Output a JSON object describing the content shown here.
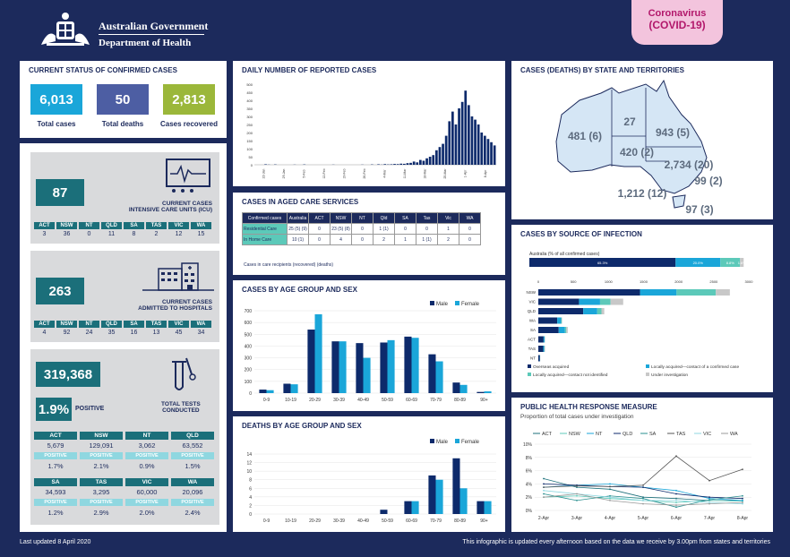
{
  "header": {
    "gov_line1": "Australian Government",
    "gov_line2": "Department of Health",
    "badge_line1": "Coronavirus",
    "badge_line2": "(COVID-19)"
  },
  "status": {
    "title": "CURRENT STATUS OF CONFIRMED CASES",
    "total_cases": "6,013",
    "total_cases_label": "Total cases",
    "total_deaths": "50",
    "total_deaths_label": "Total deaths",
    "recovered": "2,813",
    "recovered_label": "Cases recovered"
  },
  "icu": {
    "value": "87",
    "label1": "CURRENT CASES",
    "label2": "INTENSIVE CARE UNITS (ICU)",
    "states": [
      "ACT",
      "NSW",
      "NT",
      "QLD",
      "SA",
      "TAS",
      "VIC",
      "WA"
    ],
    "values": [
      "3",
      "36",
      "0",
      "11",
      "8",
      "2",
      "12",
      "15"
    ]
  },
  "hospital": {
    "value": "263",
    "label1": "CURRENT CASES",
    "label2": "ADMITTED TO HOSPITALS",
    "states": [
      "ACT",
      "NSW",
      "NT",
      "QLD",
      "SA",
      "TAS",
      "VIC",
      "WA"
    ],
    "values": [
      "4",
      "92",
      "24",
      "35",
      "16",
      "13",
      "45",
      "34"
    ]
  },
  "tests": {
    "value": "319,368",
    "positive_pct": "1.9%",
    "positive_label": "POSITIVE",
    "label1": "TOTAL TESTS",
    "label2": "CONDUCTED",
    "positive_word": "POSITIVE",
    "states": [
      {
        "name": "ACT",
        "tests": "5,679",
        "pct": "1.7%"
      },
      {
        "name": "NSW",
        "tests": "129,091",
        "pct": "2.1%"
      },
      {
        "name": "NT",
        "tests": "3,062",
        "pct": "0.9%"
      },
      {
        "name": "QLD",
        "tests": "63,552",
        "pct": "1.5%"
      },
      {
        "name": "SA",
        "tests": "34,593",
        "pct": "1.2%"
      },
      {
        "name": "TAS",
        "tests": "3,295",
        "pct": "2.9%"
      },
      {
        "name": "VIC",
        "tests": "60,000",
        "pct": "2.0%"
      },
      {
        "name": "WA",
        "tests": "20,096",
        "pct": "2.4%"
      }
    ]
  },
  "aged": {
    "title": "CASES IN AGED CARE SERVICES",
    "headers": [
      "Confirmed cases",
      "Australia",
      "ACT",
      "NSW",
      "NT",
      "Qld",
      "SA",
      "Tas",
      "Vic",
      "WA"
    ],
    "rows": [
      {
        "label": "Residential Care",
        "cells": [
          "25 (5) (9)",
          "0",
          "23 (5) (8)",
          "0",
          "1 (1)",
          "0",
          "0",
          "1",
          "0"
        ]
      },
      {
        "label": "In Home Care",
        "cells": [
          "10 (1)",
          "0",
          "4",
          "0",
          "2",
          "1",
          "1 (1)",
          "2",
          "0"
        ]
      }
    ],
    "note": "Cases in care recipients (recovered) (deaths)"
  },
  "map": {
    "title": "CASES (DEATHS) BY STATE AND TERRITORIES",
    "labels": [
      {
        "text": "481 (6)",
        "state": "WA"
      },
      {
        "text": "27",
        "state": "NT"
      },
      {
        "text": "943 (5)",
        "state": "QLD"
      },
      {
        "text": "420 (2)",
        "state": "SA"
      },
      {
        "text": "2,734 (20)",
        "state": "NSW"
      },
      {
        "text": "99 (2)",
        "state": "ACT"
      },
      {
        "text": "1,212 (12)",
        "state": "VIC"
      },
      {
        "text": "97 (3)",
        "state": "TAS"
      }
    ]
  },
  "chart_data": [
    {
      "id": "daily",
      "type": "bar",
      "title": "DAILY NUMBER OF REPORTED CASES",
      "ylim": [
        0,
        500
      ],
      "yticks": [
        "0",
        "50",
        "100",
        "150",
        "200",
        "250",
        "300",
        "350",
        "400",
        "450",
        "500"
      ],
      "xticklabels": [
        "22-Jan",
        "29-Jan",
        "5-Feb",
        "12-Feb",
        "19-Feb",
        "26-Feb",
        "4-Mar",
        "11-Mar",
        "18-Mar",
        "25-Mar",
        "1-Apr",
        "8-Apr"
      ],
      "values": [
        0,
        0,
        0,
        3,
        1,
        0,
        2,
        0,
        0,
        0,
        0,
        0,
        1,
        0,
        0,
        2,
        0,
        0,
        0,
        0,
        0,
        0,
        0,
        0,
        1,
        0,
        0,
        0,
        0,
        0,
        0,
        0,
        0,
        1,
        0,
        0,
        2,
        0,
        3,
        1,
        4,
        2,
        3,
        5,
        4,
        7,
        6,
        10,
        12,
        20,
        15,
        30,
        25,
        40,
        50,
        60,
        90,
        110,
        130,
        180,
        270,
        330,
        250,
        350,
        390,
        460,
        370,
        300,
        280,
        250,
        200,
        180,
        160,
        140,
        120
      ],
      "note": "values estimated from bar heights"
    },
    {
      "id": "age",
      "type": "bar",
      "title": "CASES BY AGE GROUP AND SEX",
      "ylim": [
        0,
        700
      ],
      "yticks": [
        "0",
        "100",
        "200",
        "300",
        "400",
        "500",
        "600",
        "700"
      ],
      "categories": [
        "0-9",
        "10-19",
        "20-29",
        "30-39",
        "40-49",
        "50-59",
        "60-69",
        "70-79",
        "80-89",
        "90+"
      ],
      "series": [
        {
          "name": "Male",
          "color": "#0d2a6b",
          "values": [
            30,
            80,
            540,
            440,
            425,
            430,
            480,
            330,
            90,
            10
          ]
        },
        {
          "name": "Female",
          "color": "#1aa6d9",
          "values": [
            25,
            75,
            670,
            440,
            300,
            450,
            470,
            270,
            70,
            15
          ]
        }
      ]
    },
    {
      "id": "deaths",
      "type": "bar",
      "title": "DEATHS BY AGE GROUP AND SEX",
      "ylim": [
        0,
        14
      ],
      "yticks": [
        "0",
        "2",
        "4",
        "6",
        "8",
        "10",
        "12",
        "14"
      ],
      "categories": [
        "0-9",
        "10-19",
        "20-29",
        "30-39",
        "40-49",
        "50-59",
        "60-69",
        "70-79",
        "80-89",
        "90+"
      ],
      "series": [
        {
          "name": "Male",
          "color": "#0d2a6b",
          "values": [
            0,
            0,
            0,
            0,
            0,
            1,
            3,
            9,
            13,
            3
          ]
        },
        {
          "name": "Female",
          "color": "#1aa6d9",
          "values": [
            0,
            0,
            0,
            0,
            0,
            0,
            3,
            8,
            6,
            3
          ]
        }
      ]
    },
    {
      "id": "source",
      "type": "bar",
      "title": "CASES BY SOURCE OF INFECTION",
      "subtitle": "Australia (% of all confirmed cases)",
      "aus_pct": [
        "65.3%",
        "20.0%",
        "8.8%",
        "1.6%"
      ],
      "xticks": [
        "0",
        "500",
        "1000",
        "1500",
        "2000",
        "2500",
        "3000"
      ],
      "xlim": [
        0,
        3000
      ],
      "categories": [
        "NSW",
        "VIC",
        "QLD",
        "WA",
        "SA",
        "ACT",
        "TAS",
        "NT"
      ],
      "series": [
        {
          "name": "Overseas acquired",
          "color": "#0d2a6b",
          "values": [
            1450,
            580,
            640,
            270,
            290,
            75,
            70,
            22
          ]
        },
        {
          "name": "Locally acquired—contact of a confirmed case",
          "color": "#1aa6d9",
          "values": [
            520,
            300,
            200,
            55,
            90,
            14,
            15,
            3
          ]
        },
        {
          "name": "Locally acquired—contact not identified",
          "color": "#5cc9b9",
          "values": [
            560,
            150,
            60,
            10,
            20,
            3,
            3,
            1
          ]
        },
        {
          "name": "Under investigation",
          "color": "#c8c8c8",
          "values": [
            200,
            180,
            40,
            5,
            20,
            5,
            8,
            1
          ]
        }
      ]
    },
    {
      "id": "phrm",
      "type": "line",
      "title": "PUBLIC HEALTH RESPONSE MEASURE",
      "subtitle": "Proportion of total cases under investigation",
      "ylim": [
        0,
        10
      ],
      "yticks": [
        "0%",
        "2%",
        "4%",
        "6%",
        "8%",
        "10%"
      ],
      "x": [
        "2-Apr",
        "3-Apr",
        "4-Apr",
        "5-Apr",
        "6-Apr",
        "7-Apr",
        "8-Apr"
      ],
      "series": [
        {
          "name": "ACT",
          "color": "#1b6f7a",
          "values": [
            4.8,
            3.5,
            3.2,
            2.0,
            1.8,
            1.5,
            1.5
          ]
        },
        {
          "name": "NSW",
          "color": "#5cc9b9",
          "values": [
            2.0,
            2.2,
            1.8,
            1.5,
            1.2,
            1.5,
            1.4
          ]
        },
        {
          "name": "NT",
          "color": "#1aa6d9",
          "values": [
            3.5,
            3.8,
            4.0,
            3.5,
            3.0,
            1.8,
            1.5
          ]
        },
        {
          "name": "QLD",
          "color": "#0d2a6b",
          "values": [
            4.0,
            3.8,
            3.6,
            3.5,
            2.5,
            2.0,
            1.8
          ]
        },
        {
          "name": "SA",
          "color": "#2a8f8f",
          "values": [
            2.5,
            1.5,
            2.2,
            1.8,
            0.5,
            1.6,
            2.2
          ]
        },
        {
          "name": "TAS",
          "color": "#555555",
          "values": [
            3.5,
            3.7,
            3.6,
            3.8,
            8.2,
            4.5,
            6.2
          ]
        },
        {
          "name": "VIC",
          "color": "#8fd7e0",
          "values": [
            3.0,
            2.5,
            2.0,
            1.5,
            1.5,
            1.2,
            1.0
          ]
        },
        {
          "name": "WA",
          "color": "#999999",
          "values": [
            2.0,
            2.5,
            1.5,
            1.0,
            0.8,
            1.0,
            1.2
          ]
        }
      ]
    }
  ],
  "footer": {
    "updated": "Last updated 8 April 2020",
    "note": "This infographic is updated every afternoon based on the data we receive by 3.00pm from states and territories"
  }
}
